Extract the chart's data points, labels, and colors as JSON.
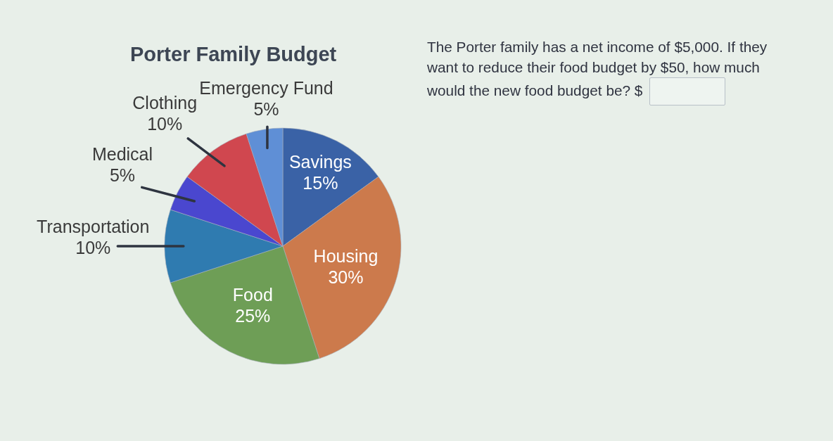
{
  "chart_data": {
    "type": "pie",
    "title": "Porter Family Budget",
    "categories": [
      "Savings",
      "Housing",
      "Food",
      "Transportation",
      "Medical",
      "Clothing",
      "Emergency Fund"
    ],
    "values": [
      15,
      30,
      25,
      10,
      5,
      10,
      5
    ],
    "value_labels": [
      "15%",
      "30%",
      "25%",
      "10%",
      "5%",
      "10%",
      "5%"
    ],
    "colors": [
      "#3a62a6",
      "#cc7a4c",
      "#6e9e56",
      "#2f7bb0",
      "#4a47cf",
      "#d0474f",
      "#5f8fd6"
    ],
    "annotations": [
      "The Porter family has a net income of $5,000. If they want to reduce their food budget by $50, how much would the new food budget be? $"
    ]
  }
}
